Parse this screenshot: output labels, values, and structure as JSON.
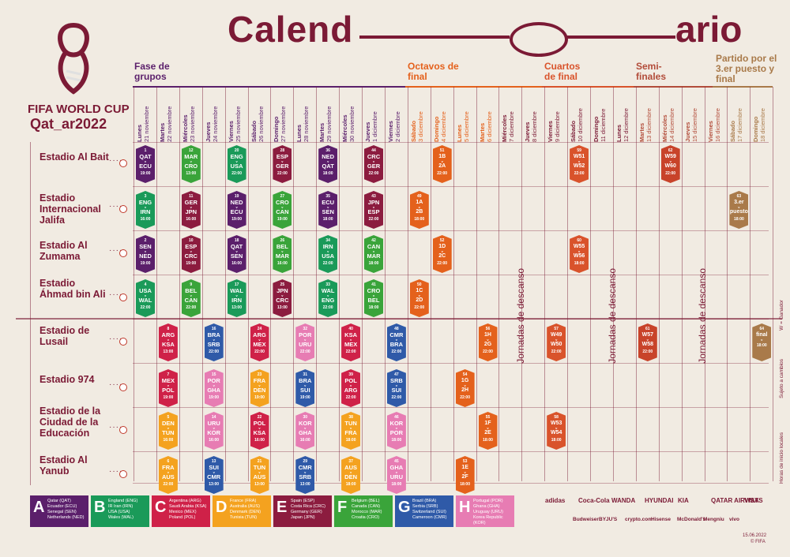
{
  "title_part1": "Calend",
  "title_part2": "ario",
  "brand_line1": "FIFA WORLD CUP",
  "brand_line2": "Qat_ar2022",
  "phases": {
    "groups": "Fase de grupos",
    "r16": "Octavos de final",
    "qf": "Cuartos de final",
    "sf": "Semi- finales",
    "final": "Partido por el 3.er puesto y final"
  },
  "days": [
    {
      "w": "Lunes",
      "d": "21 noviembre"
    },
    {
      "w": "Martes",
      "d": "22 noviembre"
    },
    {
      "w": "Miércoles",
      "d": "23 noviembre"
    },
    {
      "w": "Jueves",
      "d": "24 noviembre"
    },
    {
      "w": "Viernes",
      "d": "25 noviembre"
    },
    {
      "w": "Sábado",
      "d": "26 noviembre"
    },
    {
      "w": "Domingo",
      "d": "27 noviembre"
    },
    {
      "w": "Lunes",
      "d": "28 noviembre"
    },
    {
      "w": "Martes",
      "d": "29 noviembre"
    },
    {
      "w": "Miércoles",
      "d": "30 noviembre"
    },
    {
      "w": "Jueves",
      "d": "1 diciembre"
    },
    {
      "w": "Viernes",
      "d": "2 diciembre"
    },
    {
      "w": "Sábado",
      "d": "3 diciembre"
    },
    {
      "w": "Domingo",
      "d": "4 diciembre"
    },
    {
      "w": "Lunes",
      "d": "5 diciembre"
    },
    {
      "w": "Martes",
      "d": "6 diciembre"
    },
    {
      "w": "Miércoles",
      "d": "7 diciembre"
    },
    {
      "w": "Jueves",
      "d": "8 diciembre"
    },
    {
      "w": "Viernes",
      "d": "9 diciembre"
    },
    {
      "w": "Sábado",
      "d": "10 diciembre"
    },
    {
      "w": "Domingo",
      "d": "11 diciembre"
    },
    {
      "w": "Lunes",
      "d": "12 diciembre"
    },
    {
      "w": "Martes",
      "d": "13 diciembre"
    },
    {
      "w": "Miércoles",
      "d": "14 diciembre"
    },
    {
      "w": "Jueves",
      "d": "15 diciembre"
    },
    {
      "w": "Viernes",
      "d": "16 diciembre"
    },
    {
      "w": "Sábado",
      "d": "17 diciembre"
    },
    {
      "w": "Domingo",
      "d": "18 diciembre"
    }
  ],
  "venues": [
    "Estadio Al Bait",
    "Estadio Internacional Jalifa",
    "Estadio Al Zumama",
    "Estadio Áhmad bin Ali",
    "Estadio de Lusail",
    "Estadio 974",
    "Estadio de la Ciudad de la Educación",
    "Estadio Al Yanub"
  ],
  "rest_label": "Jornadas de descanso",
  "group_colors": {
    "A": "#5b1f6b",
    "B": "#1a9a59",
    "C": "#cf2148",
    "D": "#f4a21f",
    "E": "#8c1c3f",
    "F": "#3aa43a",
    "G": "#2f5aa8",
    "H": "#e77cb3"
  },
  "matches": [
    {
      "n": "1",
      "a": "QAT",
      "b": "ECU",
      "h": "19:00",
      "g": "A",
      "col": 0,
      "row": 0
    },
    {
      "n": "12",
      "a": "MAR",
      "b": "CRO",
      "h": "13:00",
      "g": "F",
      "col": 2,
      "row": 0
    },
    {
      "n": "20",
      "a": "ENG",
      "b": "USA",
      "h": "22:00",
      "g": "B",
      "col": 4,
      "row": 0
    },
    {
      "n": "28",
      "a": "ESP",
      "b": "GER",
      "h": "22:00",
      "g": "E",
      "col": 6,
      "row": 0
    },
    {
      "n": "36",
      "a": "NED",
      "b": "QAT",
      "h": "18:00",
      "g": "A",
      "col": 8,
      "row": 0
    },
    {
      "n": "44",
      "a": "CRC",
      "b": "GER",
      "h": "22:00",
      "g": "E",
      "col": 10,
      "row": 0
    },
    {
      "n": "3",
      "a": "ENG",
      "b": "IRN",
      "h": "16:00",
      "g": "B",
      "col": 0,
      "row": 1
    },
    {
      "n": "11",
      "a": "GER",
      "b": "JPN",
      "h": "16:00",
      "g": "E",
      "col": 2,
      "row": 1
    },
    {
      "n": "19",
      "a": "NED",
      "b": "ECU",
      "h": "19:00",
      "g": "A",
      "col": 4,
      "row": 1
    },
    {
      "n": "27",
      "a": "CRO",
      "b": "CAN",
      "h": "19:00",
      "g": "F",
      "col": 6,
      "row": 1
    },
    {
      "n": "35",
      "a": "ECU",
      "b": "SEN",
      "h": "18:00",
      "g": "A",
      "col": 8,
      "row": 1
    },
    {
      "n": "43",
      "a": "JPN",
      "b": "ESP",
      "h": "22:00",
      "g": "E",
      "col": 10,
      "row": 1
    },
    {
      "n": "2",
      "a": "SEN",
      "b": "NED",
      "h": "19:00",
      "g": "A",
      "col": 0,
      "row": 2
    },
    {
      "n": "10",
      "a": "ESP",
      "b": "CRC",
      "h": "19:00",
      "g": "E",
      "col": 2,
      "row": 2
    },
    {
      "n": "18",
      "a": "QAT",
      "b": "SEN",
      "h": "16:00",
      "g": "A",
      "col": 4,
      "row": 2
    },
    {
      "n": "26",
      "a": "BEL",
      "b": "MAR",
      "h": "16:00",
      "g": "F",
      "col": 6,
      "row": 2
    },
    {
      "n": "34",
      "a": "IRN",
      "b": "USA",
      "h": "22:00",
      "g": "B",
      "col": 8,
      "row": 2
    },
    {
      "n": "42",
      "a": "CAN",
      "b": "MAR",
      "h": "18:00",
      "g": "F",
      "col": 10,
      "row": 2
    },
    {
      "n": "4",
      "a": "USA",
      "b": "WAL",
      "h": "22:00",
      "g": "B",
      "col": 0,
      "row": 3
    },
    {
      "n": "9",
      "a": "BEL",
      "b": "CAN",
      "h": "22:00",
      "g": "F",
      "col": 2,
      "row": 3
    },
    {
      "n": "17",
      "a": "WAL",
      "b": "IRN",
      "h": "13:00",
      "g": "B",
      "col": 4,
      "row": 3
    },
    {
      "n": "25",
      "a": "JPN",
      "b": "CRC",
      "h": "13:00",
      "g": "E",
      "col": 6,
      "row": 3
    },
    {
      "n": "33",
      "a": "WAL",
      "b": "ENG",
      "h": "22:00",
      "g": "B",
      "col": 8,
      "row": 3
    },
    {
      "n": "41",
      "a": "CRO",
      "b": "BEL",
      "h": "18:00",
      "g": "F",
      "col": 10,
      "row": 3
    },
    {
      "n": "8",
      "a": "ARG",
      "b": "KSA",
      "h": "13:00",
      "g": "C",
      "col": 1,
      "row": 4
    },
    {
      "n": "16",
      "a": "BRA",
      "b": "SRB",
      "h": "22:00",
      "g": "G",
      "col": 3,
      "row": 4
    },
    {
      "n": "24",
      "a": "ARG",
      "b": "MEX",
      "h": "22:00",
      "g": "C",
      "col": 5,
      "row": 4
    },
    {
      "n": "32",
      "a": "POR",
      "b": "URU",
      "h": "22:00",
      "g": "H",
      "col": 7,
      "row": 4
    },
    {
      "n": "40",
      "a": "KSA",
      "b": "MEX",
      "h": "22:00",
      "g": "C",
      "col": 9,
      "row": 4
    },
    {
      "n": "48",
      "a": "CMR",
      "b": "BRA",
      "h": "22:00",
      "g": "G",
      "col": 11,
      "row": 4
    },
    {
      "n": "7",
      "a": "MEX",
      "b": "POL",
      "h": "19:00",
      "g": "C",
      "col": 1,
      "row": 5
    },
    {
      "n": "15",
      "a": "POR",
      "b": "GHA",
      "h": "19:00",
      "g": "H",
      "col": 3,
      "row": 5
    },
    {
      "n": "23",
      "a": "FRA",
      "b": "DEN",
      "h": "19:00",
      "g": "D",
      "col": 5,
      "row": 5
    },
    {
      "n": "31",
      "a": "BRA",
      "b": "SUI",
      "h": "19:00",
      "g": "G",
      "col": 7,
      "row": 5
    },
    {
      "n": "39",
      "a": "POL",
      "b": "ARG",
      "h": "22:00",
      "g": "C",
      "col": 9,
      "row": 5
    },
    {
      "n": "47",
      "a": "SRB",
      "b": "SUI",
      "h": "22:00",
      "g": "G",
      "col": 11,
      "row": 5
    },
    {
      "n": "5",
      "a": "DEN",
      "b": "TUN",
      "h": "16:00",
      "g": "D",
      "col": 1,
      "row": 6
    },
    {
      "n": "14",
      "a": "URU",
      "b": "KOR",
      "h": "16:00",
      "g": "H",
      "col": 3,
      "row": 6
    },
    {
      "n": "22",
      "a": "POL",
      "b": "KSA",
      "h": "16:00",
      "g": "C",
      "col": 5,
      "row": 6
    },
    {
      "n": "30",
      "a": "KOR",
      "b": "GHA",
      "h": "16:00",
      "g": "H",
      "col": 7,
      "row": 6
    },
    {
      "n": "38",
      "a": "TUN",
      "b": "FRA",
      "h": "18:00",
      "g": "D",
      "col": 9,
      "row": 6
    },
    {
      "n": "46",
      "a": "KOR",
      "b": "POR",
      "h": "18:00",
      "g": "H",
      "col": 11,
      "row": 6
    },
    {
      "n": "6",
      "a": "FRA",
      "b": "AUS",
      "h": "22:00",
      "g": "D",
      "col": 1,
      "row": 7
    },
    {
      "n": "13",
      "a": "SUI",
      "b": "CMR",
      "h": "13:00",
      "g": "G",
      "col": 3,
      "row": 7
    },
    {
      "n": "21",
      "a": "TUN",
      "b": "AUS",
      "h": "13:00",
      "g": "D",
      "col": 5,
      "row": 7
    },
    {
      "n": "29",
      "a": "CMR",
      "b": "SRB",
      "h": "13:00",
      "g": "G",
      "col": 7,
      "row": 7
    },
    {
      "n": "37",
      "a": "AUS",
      "b": "DEN",
      "h": "18:00",
      "g": "D",
      "col": 9,
      "row": 7
    },
    {
      "n": "45",
      "a": "GHA",
      "b": "URU",
      "h": "18:00",
      "g": "H",
      "col": 11,
      "row": 7
    }
  ],
  "knockouts": [
    {
      "n": "51",
      "a": "1B",
      "b": "2A",
      "h": "22:00",
      "col": 13,
      "row": 0
    },
    {
      "n": "49",
      "a": "1A",
      "b": "2B",
      "h": "18:00",
      "col": 12,
      "row": 1
    },
    {
      "n": "52",
      "a": "1D",
      "b": "2C",
      "h": "22:00",
      "col": 13,
      "row": 2
    },
    {
      "n": "50",
      "a": "1C",
      "b": "2D",
      "h": "22:00",
      "col": 12,
      "row": 3
    },
    {
      "n": "56",
      "a": "1H",
      "b": "2G",
      "h": "22:00",
      "col": 15,
      "row": 4
    },
    {
      "n": "54",
      "a": "1G",
      "b": "2H",
      "h": "22:00",
      "col": 14,
      "row": 5
    },
    {
      "n": "55",
      "a": "1F",
      "b": "2E",
      "h": "18:00",
      "col": 15,
      "row": 6
    },
    {
      "n": "53",
      "a": "1E",
      "b": "2F",
      "h": "18:00",
      "col": 14,
      "row": 7
    },
    {
      "n": "59",
      "a": "W51",
      "b": "W52",
      "h": "22:00",
      "col": 19,
      "row": 0
    },
    {
      "n": "60",
      "a": "W55",
      "b": "W56",
      "h": "18:00",
      "col": 19,
      "row": 2
    },
    {
      "n": "57",
      "a": "W49",
      "b": "W50",
      "h": "22:00",
      "col": 18,
      "row": 4
    },
    {
      "n": "58",
      "a": "W53",
      "b": "W54",
      "h": "18:00",
      "col": 18,
      "row": 6
    },
    {
      "n": "62",
      "a": "W59",
      "b": "W60",
      "h": "22:00",
      "col": 23,
      "row": 0
    },
    {
      "n": "61",
      "a": "W57",
      "b": "W58",
      "h": "22:00",
      "col": 22,
      "row": 4
    },
    {
      "n": "63",
      "a": "3.er",
      "b": "puesto",
      "h": "18:00",
      "col": 26,
      "row": 1,
      "final": true
    },
    {
      "n": "64",
      "a": "final",
      "b": "",
      "h": "18:00",
      "col": 27,
      "row": 4,
      "final": true
    }
  ],
  "legend": [
    {
      "L": "A",
      "color": "#5b1f6b",
      "teams": [
        "Qatar (QAT)",
        "Ecuador (ECU)",
        "Senegal (SEN)",
        "Netherlands (NED)"
      ]
    },
    {
      "L": "B",
      "color": "#1a9a59",
      "teams": [
        "England (ENG)",
        "IR Iran (IRN)",
        "USA (USA)",
        "Wales (WAL)"
      ]
    },
    {
      "L": "C",
      "color": "#cf2148",
      "teams": [
        "Argentina (ARG)",
        "Saudi Arabia (KSA)",
        "Mexico (MEX)",
        "Poland (POL)"
      ]
    },
    {
      "L": "D",
      "color": "#f4a21f",
      "teams": [
        "France (FRA)",
        "Australia (AUS)",
        "Denmark (DEN)",
        "Tunisia (TUN)"
      ]
    },
    {
      "L": "E",
      "color": "#8c1c3f",
      "teams": [
        "Spain (ESP)",
        "Costa Rica (CRC)",
        "Germany (GER)",
        "Japan (JPN)"
      ]
    },
    {
      "L": "F",
      "color": "#3aa43a",
      "teams": [
        "Belgium (BEL)",
        "Canada (CAN)",
        "Morocco (MAR)",
        "Croatia (CRO)"
      ]
    },
    {
      "L": "G",
      "color": "#2f5aa8",
      "teams": [
        "Brazil (BRA)",
        "Serbia (SRB)",
        "Switzerland (SUI)",
        "Cameroon (CMR)"
      ]
    },
    {
      "L": "H",
      "color": "#e77cb3",
      "teams": [
        "Portugal (POR)",
        "Ghana (GHA)",
        "Uruguay (URU)",
        "Korea Republic (KOR)"
      ]
    }
  ],
  "sponsors_row1": [
    "adidas",
    "Coca-Cola",
    "WANDA",
    "HYUNDAI",
    "KIA",
    "QATAR AIRWAYS",
    "VISA"
  ],
  "sponsors_row2": [
    "Budweiser",
    "BYJU'S",
    "crypto.com",
    "Hisense",
    "McDonald's",
    "Mengniu",
    "vivo"
  ],
  "side_notes": [
    "W = Ganador",
    "Sujeto a cambios",
    "Horas de inicio locales"
  ],
  "footer_date": "15.06.2022",
  "footer_copy": "© FIFA"
}
